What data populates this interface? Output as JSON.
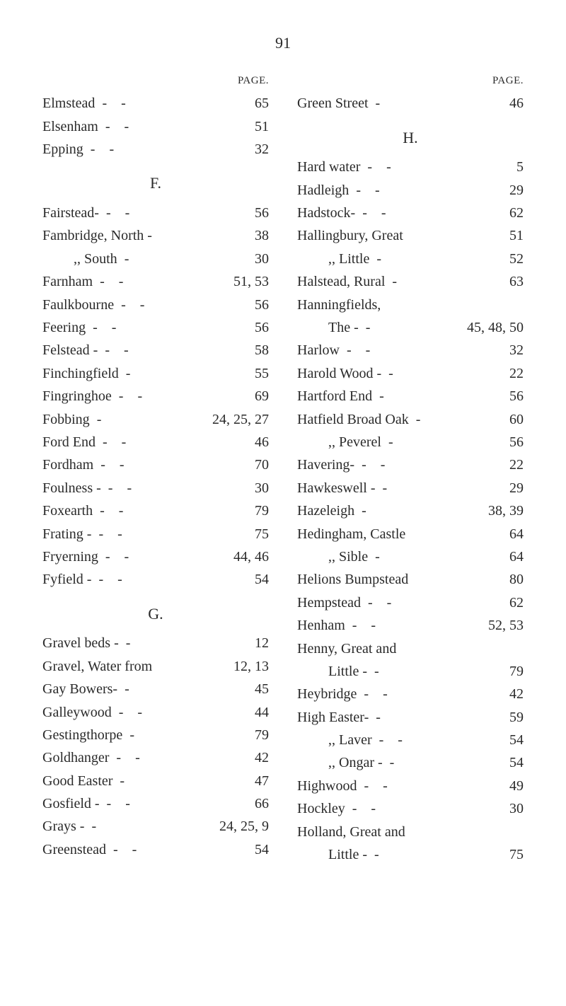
{
  "page_number": "91",
  "page_header": "PAGE.",
  "left": {
    "block1": [
      {
        "name": "Elmstead",
        "d": "- -",
        "pg": "65"
      },
      {
        "name": "Elsenham",
        "d": "- -",
        "pg": "51"
      },
      {
        "name": "Epping",
        "d": "- -",
        "pg": "32"
      }
    ],
    "letterF": "F.",
    "block2": [
      {
        "name": "Fairstead-",
        "d": "- -",
        "pg": "56"
      },
      {
        "name": "Fambridge, North -",
        "d": "",
        "pg": "38"
      },
      {
        "name": ",,           South",
        "d": "-",
        "pg": "30",
        "indent": true
      },
      {
        "name": "Farnham",
        "d": "- -",
        "pg": "51, 53"
      },
      {
        "name": "Faulkbourne",
        "d": "- -",
        "pg": "56"
      },
      {
        "name": "Feering",
        "d": "- -",
        "pg": "56"
      },
      {
        "name": "Felstead -",
        "d": "- -",
        "pg": "58"
      },
      {
        "name": "Finchingfield",
        "d": "-",
        "pg": "55"
      },
      {
        "name": "Fingringhoe",
        "d": "- -",
        "pg": "69"
      },
      {
        "name": "Fobbing",
        "d": "-",
        "pg": "24, 25, 27"
      },
      {
        "name": "Ford End",
        "d": "- -",
        "pg": "46"
      },
      {
        "name": "Fordham",
        "d": "- -",
        "pg": "70"
      },
      {
        "name": "Foulness -",
        "d": "- -",
        "pg": "30"
      },
      {
        "name": "Foxearth",
        "d": "- -",
        "pg": "79"
      },
      {
        "name": "Frating -",
        "d": "- -",
        "pg": "75"
      },
      {
        "name": "Fryerning",
        "d": "- -",
        "pg": "44, 46"
      },
      {
        "name": "Fyfield -",
        "d": "- -",
        "pg": "54"
      }
    ],
    "letterG": "G.",
    "block3": [
      {
        "name": "Gravel beds -",
        "d": "-",
        "pg": "12"
      },
      {
        "name": "Gravel, Water from",
        "d": "",
        "pg": "12, 13"
      },
      {
        "name": "Gay Bowers-",
        "d": "-",
        "pg": "45"
      },
      {
        "name": "Galleywood",
        "d": "- -",
        "pg": "44"
      },
      {
        "name": "Gestingthorpe",
        "d": "-",
        "pg": "79"
      },
      {
        "name": "Goldhanger",
        "d": "- -",
        "pg": "42"
      },
      {
        "name": "Good Easter",
        "d": "-",
        "pg": "47"
      },
      {
        "name": "Gosfield -",
        "d": "- -",
        "pg": "66"
      },
      {
        "name": "Grays -",
        "d": "-",
        "pg": "24, 25, 9"
      },
      {
        "name": "Greenstead",
        "d": "- -",
        "pg": "54"
      }
    ]
  },
  "right": {
    "block1": [
      {
        "name": "Green Street",
        "d": "-",
        "pg": "46"
      }
    ],
    "letterH": "H.",
    "block2": [
      {
        "name": "Hard water",
        "d": "- -",
        "pg": "5"
      },
      {
        "name": "Hadleigh",
        "d": "- -",
        "pg": "29"
      },
      {
        "name": "Hadstock-",
        "d": "- -",
        "pg": "62"
      },
      {
        "name": "Hallingbury, Great",
        "d": "",
        "pg": "51"
      },
      {
        "name": ",,           Little",
        "d": "-",
        "pg": "52",
        "indent": true
      },
      {
        "name": "Halstead, Rural",
        "d": "-",
        "pg": "63"
      },
      {
        "name": "Hanningfields,",
        "d": "",
        "pg": ""
      },
      {
        "name": "The -",
        "d": "-",
        "pg": "45, 48, 50",
        "indent": true
      },
      {
        "name": "Harlow",
        "d": "- -",
        "pg": "32"
      },
      {
        "name": "Harold Wood -",
        "d": "-",
        "pg": "22"
      },
      {
        "name": "Hartford End",
        "d": "-",
        "pg": "56"
      },
      {
        "name": "Hatfield Broad Oak",
        "d": "-",
        "pg": "60"
      },
      {
        "name": ",,     Peverel",
        "d": "-",
        "pg": "56",
        "indent": true
      },
      {
        "name": "Havering-",
        "d": "- -",
        "pg": "22"
      },
      {
        "name": "Hawkeswell -",
        "d": "-",
        "pg": "29"
      },
      {
        "name": "Hazeleigh",
        "d": "-",
        "pg": "38, 39"
      },
      {
        "name": "Hedingham, Castle",
        "d": "",
        "pg": "64"
      },
      {
        "name": ",,           Sible",
        "d": "-",
        "pg": "64",
        "indent": true
      },
      {
        "name": "Helions Bumpstead",
        "d": "",
        "pg": "80"
      },
      {
        "name": "Hempstead",
        "d": "- -",
        "pg": "62"
      },
      {
        "name": "Henham",
        "d": "- -",
        "pg": "52, 53"
      },
      {
        "name": "Henny,   Great   and",
        "d": "",
        "pg": ""
      },
      {
        "name": "Little -",
        "d": "-",
        "pg": "79",
        "indent": true
      },
      {
        "name": "Heybridge",
        "d": "- -",
        "pg": "42"
      },
      {
        "name": "High Easter-",
        "d": "-",
        "pg": "59"
      },
      {
        "name": ",,   Laver",
        "d": "- -",
        "pg": "54",
        "indent": true
      },
      {
        "name": ",,   Ongar -",
        "d": "-",
        "pg": "54",
        "indent": true
      },
      {
        "name": "Highwood",
        "d": "- -",
        "pg": "49"
      },
      {
        "name": "Hockley",
        "d": "- -",
        "pg": "30"
      },
      {
        "name": "Holland,  Great  and",
        "d": "",
        "pg": ""
      },
      {
        "name": "Little -",
        "d": "-",
        "pg": "75",
        "indent": true
      }
    ]
  }
}
